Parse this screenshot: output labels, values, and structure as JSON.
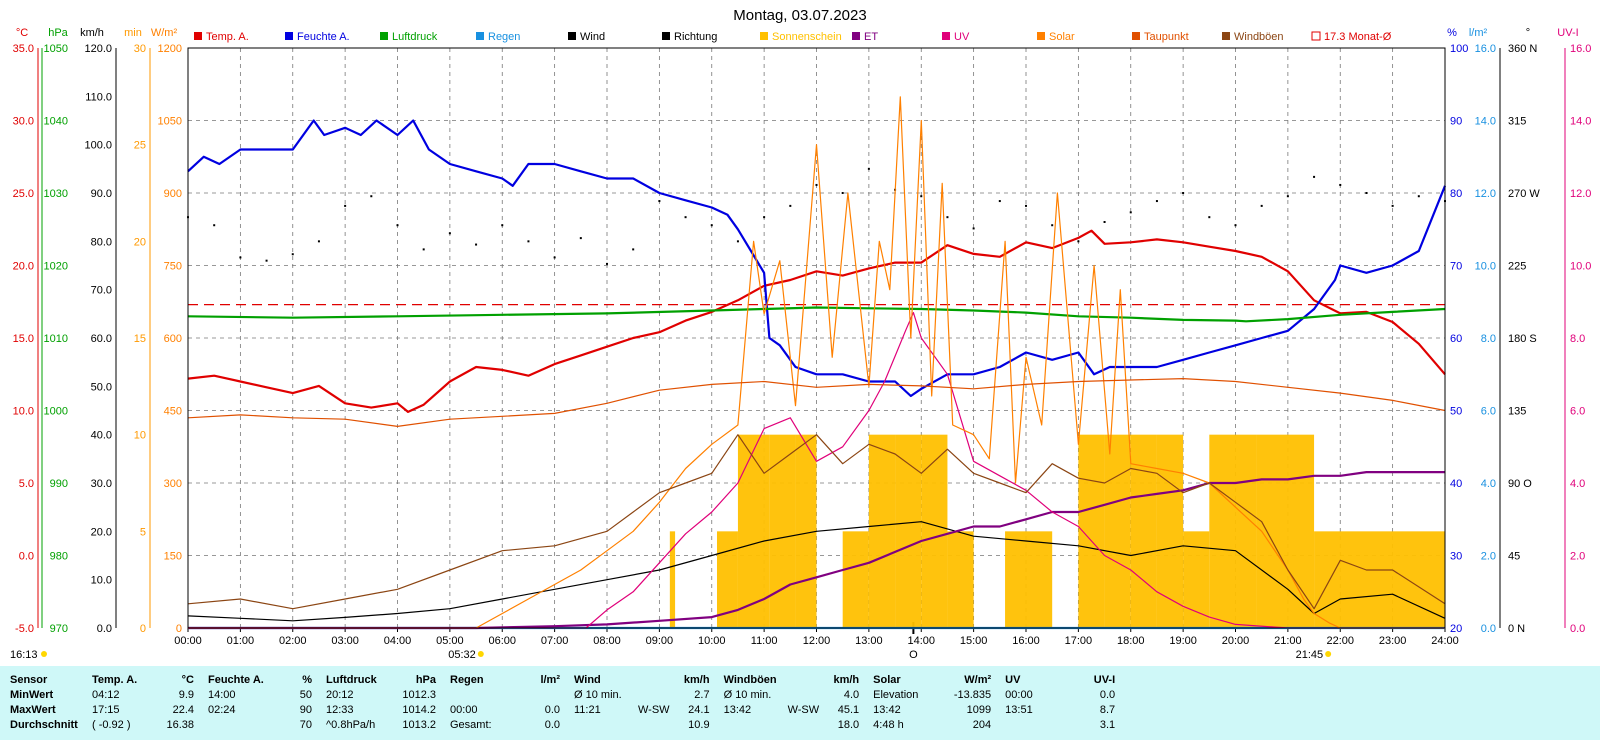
{
  "chart_data": {
    "type": "line",
    "title": "Montag, 03.07.2023",
    "legend": [
      "Temp. A.",
      "Feuchte A.",
      "Luftdruck",
      "Regen",
      "Wind",
      "Richtung",
      "Sonnenschein",
      "ET",
      "UV",
      "Solar",
      "Taupunkt",
      "Windböen",
      "17.3 Monat-Ø"
    ],
    "legend_colors": [
      "#e00000",
      "#0000e0",
      "#00a000",
      "#1890e0",
      "#000000",
      "#000000",
      "#ffc000",
      "#800080",
      "#e0007a",
      "#ff8000",
      "#e05000",
      "#8b4513",
      "#e00000"
    ],
    "x_ticks": [
      "00:00",
      "01:00",
      "02:00",
      "03:00",
      "04:00",
      "05:00",
      "06:00",
      "07:00",
      "08:00",
      "09:00",
      "10:00",
      "11:00",
      "12:00",
      "13:00",
      "14:00",
      "15:00",
      "16:00",
      "17:00",
      "18:00",
      "19:00",
      "20:00",
      "21:00",
      "22:00",
      "23:00",
      "24:00"
    ],
    "x_range_hours": [
      0,
      24
    ],
    "sunrise": "05:32",
    "sunset": "21:45",
    "current_time": "16:13",
    "noon_marker": "O",
    "axes": {
      "temp": {
        "unit": "°C",
        "ticks": [
          "35.0",
          "30.0",
          "25.0",
          "20.0",
          "15.0",
          "10.0",
          "5.0",
          "0.0",
          "-5.0"
        ],
        "range": [
          -5,
          35
        ]
      },
      "pressure": {
        "unit": "hPa",
        "ticks": [
          "1050",
          "1040",
          "1030",
          "1020",
          "1010",
          "1000",
          "990",
          "980",
          "970"
        ],
        "range": [
          970,
          1050
        ]
      },
      "wind": {
        "unit": "km/h",
        "ticks": [
          "120.0",
          "110.0",
          "100.0",
          "90.0",
          "80.0",
          "70.0",
          "60.0",
          "50.0",
          "40.0",
          "30.0",
          "20.0",
          "10.0",
          "0.0"
        ],
        "range": [
          0,
          120
        ]
      },
      "sunshine": {
        "unit": "min",
        "ticks": [
          "30",
          "25",
          "20",
          "15",
          "10",
          "5",
          "0"
        ],
        "range": [
          0,
          30
        ]
      },
      "solar": {
        "unit": "W/m²",
        "ticks": [
          "1200",
          "1050",
          "900",
          "750",
          "600",
          "450",
          "300",
          "150",
          "0"
        ],
        "range": [
          0,
          1200
        ]
      },
      "humidity": {
        "unit": "%",
        "ticks": [
          "100",
          "90",
          "80",
          "70",
          "60",
          "50",
          "40",
          "30",
          "20"
        ],
        "range": [
          20,
          100
        ]
      },
      "rain": {
        "unit": "l/m²",
        "ticks": [
          "16.0",
          "14.0",
          "12.0",
          "10.0",
          "8.0",
          "6.0",
          "4.0",
          "2.0",
          "0.0"
        ],
        "range": [
          0,
          16
        ]
      },
      "direction": {
        "unit": "°",
        "ticks": [
          "360 N",
          "315",
          "270 W",
          "225",
          "180 S",
          "135",
          "90 O",
          "45",
          "0 N"
        ],
        "range": [
          0,
          360
        ]
      },
      "uv": {
        "unit": "UV-I",
        "ticks": [
          "16.0",
          "14.0",
          "12.0",
          "10.0",
          "8.0",
          "6.0",
          "4.0",
          "2.0",
          "0.0"
        ],
        "range": [
          0,
          16
        ]
      }
    },
    "monthly_avg_temp": 17.3,
    "series": [
      {
        "name": "Temp. A.",
        "axis": "temp",
        "x": [
          0,
          0.5,
          1,
          1.5,
          2,
          2.5,
          3,
          3.5,
          4,
          4.2,
          4.5,
          5,
          5.5,
          6,
          6.5,
          7,
          7.5,
          8,
          8.5,
          9,
          9.5,
          10,
          10.5,
          11,
          11.5,
          12,
          12.5,
          13,
          13.5,
          14,
          14.5,
          15,
          15.5,
          16,
          16.5,
          17,
          17.25,
          17.5,
          18,
          18.5,
          19,
          19.5,
          20,
          20.5,
          21,
          21.5,
          22,
          22.5,
          23,
          23.5,
          24
        ],
        "values": [
          12.2,
          12.4,
          12.0,
          11.6,
          11.2,
          11.7,
          10.5,
          10.2,
          10.5,
          9.9,
          10.4,
          12.0,
          13.0,
          12.8,
          12.4,
          13.2,
          13.8,
          14.4,
          15.0,
          15.4,
          16.2,
          16.8,
          17.6,
          18.6,
          19.0,
          19.6,
          19.3,
          19.8,
          20.2,
          20.2,
          21.4,
          20.8,
          20.6,
          21.6,
          21.2,
          21.9,
          22.4,
          21.5,
          21.6,
          21.8,
          21.6,
          21.3,
          21.0,
          20.6,
          19.6,
          17.6,
          16.7,
          16.8,
          16.1,
          14.6,
          12.5
        ]
      },
      {
        "name": "Feuchte A.",
        "axis": "humidity",
        "x": [
          0,
          0.3,
          0.6,
          1,
          1.5,
          2,
          2.4,
          2.6,
          3,
          3.3,
          3.6,
          4,
          4.3,
          4.6,
          5,
          5.5,
          6,
          6.2,
          6.5,
          7,
          7.5,
          8,
          8.5,
          9,
          9.5,
          10,
          10.3,
          10.5,
          11,
          11.1,
          11.3,
          11.6,
          12,
          12.5,
          13,
          13.5,
          13.8,
          14,
          14.5,
          15,
          15.5,
          16,
          16.5,
          17,
          17.3,
          17.6,
          18,
          18.5,
          19,
          19.5,
          20,
          20.5,
          21,
          21.5,
          21.9,
          22,
          22.5,
          23,
          23.5,
          24
        ],
        "values": [
          83,
          85,
          84,
          86,
          86,
          86,
          90,
          88,
          89,
          88,
          90,
          88,
          90,
          86,
          84,
          83,
          82,
          81,
          84,
          84,
          83,
          82,
          82,
          80,
          79,
          78,
          77,
          75,
          69,
          60,
          59,
          56,
          55,
          55,
          54,
          54,
          52,
          53,
          55,
          55,
          56,
          58,
          57,
          58,
          55,
          56,
          56,
          56,
          57,
          58,
          59,
          60,
          61,
          64,
          68,
          70,
          69,
          70,
          72,
          81
        ]
      },
      {
        "name": "Luftdruck",
        "axis": "pressure",
        "x": [
          0,
          2,
          4,
          6,
          8,
          10,
          11,
          12,
          13,
          14,
          15,
          16,
          17,
          18,
          19,
          20,
          20.2,
          21,
          22,
          23,
          24
        ],
        "values": [
          1013.0,
          1012.8,
          1013.0,
          1013.2,
          1013.4,
          1013.8,
          1014.0,
          1014.2,
          1014.1,
          1014.0,
          1013.8,
          1013.5,
          1013.0,
          1012.8,
          1012.5,
          1012.4,
          1012.3,
          1012.6,
          1013.2,
          1013.6,
          1014.0
        ]
      },
      {
        "name": "Regen",
        "axis": "rain",
        "x": [
          0,
          24
        ],
        "values": [
          0.0,
          0.0
        ]
      },
      {
        "name": "Wind",
        "axis": "wind",
        "x": [
          0,
          1,
          2,
          3,
          4,
          5,
          6,
          7,
          8,
          9,
          10,
          11,
          12,
          13,
          14,
          15,
          16,
          17,
          18,
          19,
          20,
          21,
          21.5,
          22,
          23,
          24
        ],
        "values": [
          2.5,
          2.0,
          1.5,
          2.2,
          3.0,
          4.0,
          6.0,
          8.0,
          10.0,
          12.0,
          15.0,
          18.0,
          20.0,
          21.0,
          22.0,
          19.0,
          18.0,
          17.0,
          15.0,
          17.0,
          16.0,
          8.0,
          3.0,
          6.0,
          7.0,
          2.0
        ]
      },
      {
        "name": "Richtung",
        "axis": "direction",
        "x": [
          0,
          0.5,
          1,
          1.5,
          2,
          2.5,
          3,
          3.5,
          4,
          4.5,
          5,
          5.5,
          6,
          6.5,
          7,
          7.5,
          8,
          8.5,
          9,
          9.5,
          10,
          10.5,
          11,
          11.5,
          12,
          12.5,
          13,
          13.5,
          14,
          14.5,
          15,
          15.5,
          16,
          16.5,
          17,
          17.5,
          18,
          18.5,
          19,
          19.5,
          20,
          20.5,
          21,
          21.5,
          22,
          22.5,
          23,
          23.5,
          24
        ],
        "values": [
          255,
          250,
          230,
          228,
          232,
          240,
          262,
          268,
          250,
          235,
          245,
          238,
          250,
          240,
          230,
          242,
          226,
          235,
          265,
          255,
          250,
          240,
          255,
          262,
          275,
          270,
          285,
          272,
          268,
          255,
          248,
          265,
          262,
          250,
          240,
          252,
          258,
          265,
          270,
          255,
          250,
          262,
          268,
          280,
          275,
          270,
          262,
          268,
          265
        ]
      },
      {
        "name": "Sonnenschein",
        "axis": "sunshine",
        "x": [
          0,
          9.2,
          9.3,
          10.1,
          10.5,
          11.1,
          11.6,
          12.0,
          12.5,
          13.0,
          13.5,
          14.0,
          14.5,
          15.0,
          15.6,
          16.0,
          16.5,
          17.0,
          17.5,
          18.0,
          18.5,
          19.0,
          19.5,
          20.0,
          20.4,
          21.5,
          24
        ],
        "values": [
          0,
          5,
          0,
          5,
          10,
          10,
          10,
          0,
          5,
          10,
          10,
          10,
          5,
          0,
          5,
          5,
          0,
          10,
          10,
          10,
          10,
          5,
          10,
          10,
          10,
          5,
          0
        ]
      },
      {
        "name": "ET",
        "axis": "rain",
        "x": [
          0,
          5.5,
          7,
          8,
          9,
          10,
          10.5,
          11,
          11.5,
          12,
          12.5,
          13,
          13.5,
          14,
          14.5,
          15,
          15.5,
          16,
          16.5,
          17,
          17.5,
          18,
          18.5,
          19,
          19.5,
          20,
          20.5,
          21,
          21.5,
          22,
          22.5,
          23,
          23.5,
          24
        ],
        "values": [
          0,
          0,
          0.05,
          0.1,
          0.2,
          0.3,
          0.5,
          0.8,
          1.2,
          1.4,
          1.6,
          1.8,
          2.1,
          2.4,
          2.6,
          2.8,
          2.8,
          3.0,
          3.2,
          3.2,
          3.4,
          3.6,
          3.7,
          3.8,
          4.0,
          4.0,
          4.1,
          4.1,
          4.2,
          4.2,
          4.3,
          4.3,
          4.3,
          4.3
        ]
      },
      {
        "name": "UV",
        "axis": "uv",
        "x": [
          0,
          7.6,
          8,
          8.5,
          9,
          9.5,
          10,
          10.5,
          11,
          11.5,
          12,
          12.5,
          13,
          13.3,
          13.5,
          13.7,
          13.85,
          14,
          14.5,
          15,
          15.5,
          16,
          16.5,
          17,
          17.5,
          18,
          18.5,
          19,
          19.5,
          20,
          21,
          24
        ],
        "values": [
          0,
          0,
          0.5,
          1.0,
          1.8,
          2.6,
          3.2,
          4.0,
          5.5,
          5.8,
          4.6,
          5.0,
          6.0,
          6.8,
          7.5,
          8.2,
          8.7,
          8.0,
          7.0,
          4.6,
          4.2,
          3.8,
          3.2,
          2.8,
          2.0,
          1.6,
          1.0,
          0.6,
          0.3,
          0.1,
          0,
          0
        ]
      },
      {
        "name": "Solar",
        "axis": "solar",
        "x": [
          0,
          5.5,
          6,
          6.5,
          7,
          7.5,
          8,
          8.5,
          9,
          9.5,
          10,
          10.5,
          10.8,
          11,
          11.3,
          11.6,
          12,
          12.3,
          12.6,
          13,
          13.2,
          13.4,
          13.6,
          13.8,
          14,
          14.2,
          14.4,
          14.6,
          15,
          15.3,
          15.6,
          15.8,
          16,
          16.3,
          16.6,
          17,
          17.3,
          17.6,
          17.8,
          18,
          18.5,
          19,
          19.5,
          20,
          20.5,
          21,
          21.3,
          21.5,
          21.8,
          22,
          24
        ],
        "values": [
          0,
          0,
          30,
          60,
          90,
          120,
          160,
          200,
          260,
          330,
          380,
          420,
          800,
          650,
          760,
          460,
          1000,
          560,
          900,
          500,
          800,
          700,
          1099,
          600,
          1050,
          480,
          920,
          420,
          400,
          350,
          800,
          300,
          560,
          420,
          900,
          380,
          750,
          360,
          700,
          340,
          330,
          320,
          300,
          250,
          200,
          120,
          60,
          30,
          10,
          0,
          0
        ]
      },
      {
        "name": "Taupunkt",
        "axis": "temp",
        "x": [
          0,
          1,
          2,
          3,
          4,
          5,
          6,
          7,
          8,
          9,
          10,
          11,
          12,
          13,
          14,
          15,
          16,
          17,
          18,
          19,
          20,
          21,
          22,
          23,
          24
        ],
        "values": [
          9.5,
          9.7,
          9.5,
          9.4,
          8.9,
          9.4,
          9.6,
          9.8,
          10.5,
          11.4,
          11.8,
          12.0,
          11.6,
          11.8,
          11.7,
          11.5,
          11.8,
          12.0,
          12.1,
          12.2,
          12.0,
          11.6,
          11.2,
          10.7,
          10.0
        ]
      },
      {
        "name": "Windböen",
        "axis": "wind",
        "x": [
          0,
          1,
          2,
          3,
          4,
          5,
          6,
          7,
          8,
          8.5,
          9,
          9.5,
          10,
          10.5,
          11,
          11.5,
          12,
          12.5,
          13,
          13.5,
          14,
          14.5,
          15,
          15.5,
          16,
          16.5,
          17,
          17.5,
          18,
          18.5,
          19,
          19.5,
          20,
          20.5,
          21,
          21.5,
          22,
          22.5,
          23,
          24
        ],
        "values": [
          5.0,
          6.0,
          4.0,
          6.0,
          8.0,
          12.0,
          16.0,
          17.0,
          20.0,
          24.0,
          28.0,
          30.0,
          32.0,
          40.0,
          32.0,
          36.0,
          40.0,
          34.0,
          38.0,
          36.0,
          32.0,
          37.0,
          32.0,
          30.0,
          28.0,
          34.0,
          31.0,
          30.0,
          33.0,
          32.0,
          28.0,
          30.0,
          26.0,
          22.0,
          12.0,
          4.0,
          14.0,
          12.0,
          12.0,
          5.0
        ]
      }
    ]
  },
  "stats": {
    "header": {
      "sensor": "Sensor",
      "temp": "Temp. A.",
      "temp_unit": "°C",
      "hum": "Feuchte A.",
      "hum_unit": "%",
      "press": "Luftdruck",
      "press_unit": "hPa",
      "rain": "Regen",
      "rain_unit": "l/m²",
      "wind": "Wind",
      "wind_unit": "km/h",
      "gust": "Windböen",
      "gust_unit": "km/h",
      "solar": "Solar",
      "solar_unit": "W/m²",
      "uv": "UV",
      "uv_unit": "UV-I"
    },
    "min": {
      "label": "MinWert",
      "temp_time": "04:12",
      "temp_val": "9.9",
      "hum_time": "14:00",
      "hum_val": "50",
      "press_time": "20:12",
      "press_val": "1012.3",
      "rain_time": "",
      "rain_val": "",
      "wind_time": "Ø 10 min.",
      "wind_dir": "",
      "wind_val": "2.7",
      "gust_time": "Ø 10 min.",
      "gust_dir": "",
      "gust_val": "4.0",
      "solar_time": "Elevation",
      "solar_val": "-13.835",
      "uv_time": "00:00",
      "uv_val": "0.0"
    },
    "max": {
      "label": "MaxWert",
      "temp_time": "17:15",
      "temp_val": "22.4",
      "hum_time": "02:24",
      "hum_val": "90",
      "press_time": "12:33",
      "press_val": "1014.2",
      "rain_time": "00:00",
      "rain_val": "0.0",
      "wind_time": "11:21",
      "wind_dir": "W-SW",
      "wind_val": "24.1",
      "gust_time": "13:42",
      "gust_dir": "W-SW",
      "gust_val": "45.1",
      "solar_time": "13:42",
      "solar_val": "1099",
      "uv_time": "13:51",
      "uv_val": "8.7"
    },
    "avg": {
      "label": "Durchschnitt",
      "temp_time": "( -0.92 )",
      "temp_val": "16.38",
      "hum_time": "",
      "hum_val": "70",
      "press_time": "^0.8hPa/h",
      "press_val": "1013.2",
      "rain_time": "Gesamt:",
      "rain_val": "0.0",
      "wind_time": "",
      "wind_dir": "",
      "wind_val": "10.9",
      "gust_time": "",
      "gust_dir": "",
      "gust_val": "18.0",
      "solar_time": "4:48 h",
      "solar_val": "204",
      "uv_time": "",
      "uv_val": "3.1"
    }
  }
}
